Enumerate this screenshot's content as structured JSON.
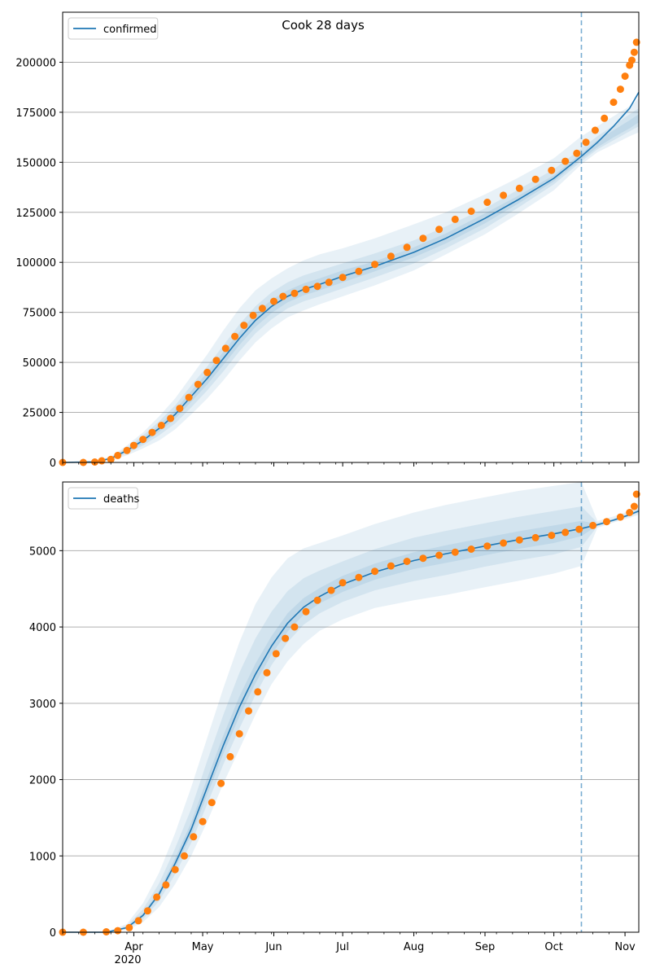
{
  "figure": {
    "title": "Cook 28 days",
    "year_label": "2020",
    "colors": {
      "model": "#1f77b4",
      "observed": "#ff7f0e",
      "band": "#1f77b4",
      "grid": "#b0b0b0"
    }
  },
  "chart_data": [
    {
      "type": "line",
      "name": "confirmed",
      "title": "Cook 28 days",
      "legend": {
        "label": "confirmed",
        "position": "top-left"
      },
      "x_axis": {
        "type": "date",
        "range": [
          "2020-03-01",
          "2020-11-07"
        ],
        "tick_labels": [
          "Apr",
          "May",
          "Jun",
          "Jul",
          "Aug",
          "Sep",
          "Oct",
          "Nov"
        ],
        "tick_dates": [
          "2020-04-01",
          "2020-05-01",
          "2020-06-01",
          "2020-07-01",
          "2020-08-01",
          "2020-09-01",
          "2020-10-01",
          "2020-11-01"
        ]
      },
      "y_axis": {
        "range": [
          0,
          225000
        ],
        "ticks": [
          0,
          25000,
          50000,
          75000,
          100000,
          125000,
          150000,
          175000,
          200000
        ],
        "grid": true
      },
      "forecast_start": "2020-10-13",
      "model_line": {
        "x": [
          "2020-03-01",
          "2020-03-15",
          "2020-03-22",
          "2020-03-29",
          "2020-04-05",
          "2020-04-12",
          "2020-04-19",
          "2020-04-26",
          "2020-05-03",
          "2020-05-10",
          "2020-05-17",
          "2020-05-24",
          "2020-05-31",
          "2020-06-07",
          "2020-06-14",
          "2020-06-21",
          "2020-07-01",
          "2020-07-15",
          "2020-08-01",
          "2020-08-15",
          "2020-09-01",
          "2020-09-15",
          "2020-10-01",
          "2020-10-13",
          "2020-10-20",
          "2020-10-27",
          "2020-11-03",
          "2020-11-07"
        ],
        "y": [
          0,
          300,
          2000,
          6000,
          11000,
          17000,
          24000,
          33000,
          42000,
          52000,
          62000,
          71000,
          78000,
          83000,
          86500,
          89000,
          93000,
          98000,
          105000,
          112000,
          122000,
          131000,
          142000,
          153000,
          160000,
          168000,
          177000,
          185000
        ]
      },
      "bands": [
        {
          "level": "outer",
          "lower": [
            0,
            200,
            1000,
            3500,
            7000,
            11000,
            16500,
            24000,
            32000,
            41000,
            51000,
            60000,
            67000,
            72500,
            76000,
            79000,
            83000,
            88500,
            96000,
            104000,
            114000,
            124000,
            136000,
            149000,
            155000,
            159000,
            163000,
            165000
          ],
          "upper": [
            0,
            500,
            3000,
            8500,
            15000,
            23000,
            32000,
            43000,
            54000,
            66000,
            77000,
            86000,
            92000,
            97000,
            101000,
            104000,
            107000,
            112000,
            119000,
            125000,
            134000,
            142000,
            152000,
            163000,
            168000,
            173000,
            178000,
            182000
          ]
        },
        {
          "level": "middle",
          "lower": [
            0,
            250,
            1400,
            4500,
            8500,
            13500,
            19500,
            27500,
            36000,
            45500,
            55500,
            64500,
            71500,
            77000,
            80500,
            83000,
            87000,
            92500,
            99500,
            107000,
            117000,
            127000,
            139000,
            150500,
            156500,
            161000,
            165500,
            168000
          ],
          "upper": [
            0,
            400,
            2600,
            7500,
            13500,
            20500,
            28500,
            38500,
            48000,
            58500,
            69000,
            78000,
            85000,
            90000,
            93500,
            96000,
            99500,
            104500,
            111000,
            118000,
            127000,
            136000,
            146500,
            157000,
            163000,
            168500,
            174000,
            177000
          ]
        },
        {
          "level": "inner",
          "lower": [
            0,
            280,
            1700,
            5200,
            9700,
            15300,
            21800,
            30300,
            39000,
            48700,
            58700,
            67700,
            74700,
            80000,
            83500,
            86000,
            90000,
            95500,
            102500,
            109500,
            119500,
            129000,
            140500,
            151500,
            157500,
            162500,
            167000,
            170000
          ],
          "upper": [
            0,
            330,
            2300,
            6800,
            12300,
            18700,
            26200,
            35700,
            45000,
            55300,
            65300,
            74300,
            81300,
            86000,
            89500,
            92000,
            96000,
            100500,
            107500,
            114500,
            124500,
            133000,
            143500,
            154500,
            161000,
            166000,
            171000,
            174000
          ]
        }
      ],
      "observed": {
        "x": [
          "2020-03-01",
          "2020-03-10",
          "2020-03-15",
          "2020-03-18",
          "2020-03-22",
          "2020-03-25",
          "2020-03-29",
          "2020-04-01",
          "2020-04-05",
          "2020-04-09",
          "2020-04-13",
          "2020-04-17",
          "2020-04-21",
          "2020-04-25",
          "2020-04-29",
          "2020-05-03",
          "2020-05-07",
          "2020-05-11",
          "2020-05-15",
          "2020-05-19",
          "2020-05-23",
          "2020-05-27",
          "2020-06-01",
          "2020-06-05",
          "2020-06-10",
          "2020-06-15",
          "2020-06-20",
          "2020-06-25",
          "2020-07-01",
          "2020-07-08",
          "2020-07-15",
          "2020-07-22",
          "2020-07-29",
          "2020-08-05",
          "2020-08-12",
          "2020-08-19",
          "2020-08-26",
          "2020-09-02",
          "2020-09-09",
          "2020-09-16",
          "2020-09-23",
          "2020-09-30",
          "2020-10-06",
          "2020-10-11",
          "2020-10-15",
          "2020-10-19",
          "2020-10-23",
          "2020-10-27",
          "2020-10-30",
          "2020-11-01",
          "2020-11-03",
          "2020-11-04",
          "2020-11-05",
          "2020-11-06"
        ],
        "y": [
          0,
          0,
          200,
          800,
          1500,
          3500,
          6000,
          8500,
          11500,
          15000,
          18500,
          22000,
          27000,
          32500,
          39000,
          45000,
          51000,
          57000,
          63000,
          68500,
          73500,
          77000,
          80500,
          83000,
          84500,
          86500,
          88000,
          90000,
          92500,
          95500,
          99000,
          103000,
          107500,
          112000,
          116500,
          121500,
          125500,
          130000,
          133500,
          137000,
          141500,
          146000,
          150500,
          154500,
          160000,
          166000,
          172000,
          180000,
          186500,
          193000,
          198500,
          201000,
          205000,
          210000
        ]
      }
    },
    {
      "type": "line",
      "name": "deaths",
      "legend": {
        "label": "deaths",
        "position": "top-left"
      },
      "x_axis": {
        "type": "date",
        "range": [
          "2020-03-01",
          "2020-11-07"
        ],
        "tick_labels": [
          "Apr",
          "May",
          "Jun",
          "Jul",
          "Aug",
          "Sep",
          "Oct",
          "Nov"
        ],
        "tick_dates": [
          "2020-04-01",
          "2020-05-01",
          "2020-06-01",
          "2020-07-01",
          "2020-08-01",
          "2020-09-01",
          "2020-10-01",
          "2020-11-01"
        ]
      },
      "y_axis": {
        "range": [
          0,
          5900
        ],
        "ticks": [
          0,
          1000,
          2000,
          3000,
          4000,
          5000
        ],
        "grid": true
      },
      "forecast_start": "2020-10-13",
      "model_line": {
        "x": [
          "2020-03-01",
          "2020-03-20",
          "2020-03-29",
          "2020-04-05",
          "2020-04-12",
          "2020-04-19",
          "2020-04-26",
          "2020-05-03",
          "2020-05-10",
          "2020-05-17",
          "2020-05-24",
          "2020-05-31",
          "2020-06-07",
          "2020-06-14",
          "2020-06-21",
          "2020-07-01",
          "2020-07-15",
          "2020-08-01",
          "2020-08-15",
          "2020-09-01",
          "2020-09-15",
          "2020-10-01",
          "2020-10-13",
          "2020-10-20",
          "2020-10-27",
          "2020-11-03",
          "2020-11-07"
        ],
        "y": [
          0,
          0,
          60,
          220,
          500,
          900,
          1350,
          1900,
          2450,
          2950,
          3380,
          3750,
          4050,
          4260,
          4400,
          4560,
          4720,
          4870,
          4960,
          5060,
          5140,
          5220,
          5290,
          5340,
          5400,
          5470,
          5520
        ]
      },
      "bands": [
        {
          "level": "outer",
          "lower": [
            0,
            0,
            30,
            130,
            330,
            630,
            1000,
            1450,
            1950,
            2400,
            2850,
            3250,
            3550,
            3780,
            3950,
            4100,
            4250,
            4350,
            4420,
            4520,
            4600,
            4700,
            4800,
            5300,
            5370,
            5430,
            5470
          ],
          "upper": [
            0,
            0,
            110,
            380,
            780,
            1300,
            1900,
            2550,
            3200,
            3800,
            4300,
            4650,
            4900,
            5030,
            5100,
            5200,
            5350,
            5500,
            5600,
            5700,
            5780,
            5850,
            5900,
            5390,
            5450,
            5520,
            5570
          ]
        },
        {
          "level": "middle",
          "lower": [
            0,
            0,
            45,
            170,
            410,
            760,
            1170,
            1680,
            2200,
            2670,
            3110,
            3500,
            3800,
            4030,
            4180,
            4330,
            4480,
            4600,
            4680,
            4790,
            4870,
            4950,
            5050,
            5320,
            5385,
            5450,
            5495
          ],
          "upper": [
            0,
            0,
            85,
            300,
            640,
            1100,
            1620,
            2250,
            2850,
            3400,
            3850,
            4200,
            4470,
            4640,
            4740,
            4860,
            5020,
            5170,
            5260,
            5360,
            5440,
            5520,
            5580,
            5365,
            5420,
            5495,
            5545
          ]
        },
        {
          "level": "inner",
          "lower": [
            0,
            0,
            55,
            200,
            465,
            840,
            1270,
            1800,
            2340,
            2830,
            3260,
            3640,
            3940,
            4160,
            4310,
            4460,
            4620,
            4760,
            4840,
            4940,
            5020,
            5100,
            5190,
            5330,
            5390,
            5460,
            5508
          ],
          "upper": [
            0,
            0,
            68,
            250,
            545,
            970,
            1440,
            2020,
            2580,
            3090,
            3520,
            3880,
            4180,
            4380,
            4510,
            4670,
            4830,
            4980,
            5070,
            5170,
            5250,
            5330,
            5390,
            5350,
            5410,
            5482,
            5532
          ]
        }
      ],
      "observed": {
        "x": [
          "2020-03-01",
          "2020-03-10",
          "2020-03-20",
          "2020-03-25",
          "2020-03-30",
          "2020-04-03",
          "2020-04-07",
          "2020-04-11",
          "2020-04-15",
          "2020-04-19",
          "2020-04-23",
          "2020-04-27",
          "2020-05-01",
          "2020-05-05",
          "2020-05-09",
          "2020-05-13",
          "2020-05-17",
          "2020-05-21",
          "2020-05-25",
          "2020-05-29",
          "2020-06-02",
          "2020-06-06",
          "2020-06-10",
          "2020-06-15",
          "2020-06-20",
          "2020-06-26",
          "2020-07-01",
          "2020-07-08",
          "2020-07-15",
          "2020-07-22",
          "2020-07-29",
          "2020-08-05",
          "2020-08-12",
          "2020-08-19",
          "2020-08-26",
          "2020-09-02",
          "2020-09-09",
          "2020-09-16",
          "2020-09-23",
          "2020-09-30",
          "2020-10-06",
          "2020-10-12",
          "2020-10-18",
          "2020-10-24",
          "2020-10-30",
          "2020-11-03",
          "2020-11-05",
          "2020-11-06"
        ],
        "y": [
          0,
          0,
          5,
          20,
          60,
          150,
          280,
          460,
          620,
          820,
          1000,
          1250,
          1450,
          1700,
          1950,
          2300,
          2600,
          2900,
          3150,
          3400,
          3650,
          3850,
          4000,
          4200,
          4350,
          4480,
          4580,
          4650,
          4730,
          4800,
          4860,
          4900,
          4940,
          4980,
          5020,
          5060,
          5100,
          5140,
          5170,
          5200,
          5240,
          5280,
          5330,
          5380,
          5440,
          5500,
          5580,
          5740
        ]
      }
    }
  ]
}
